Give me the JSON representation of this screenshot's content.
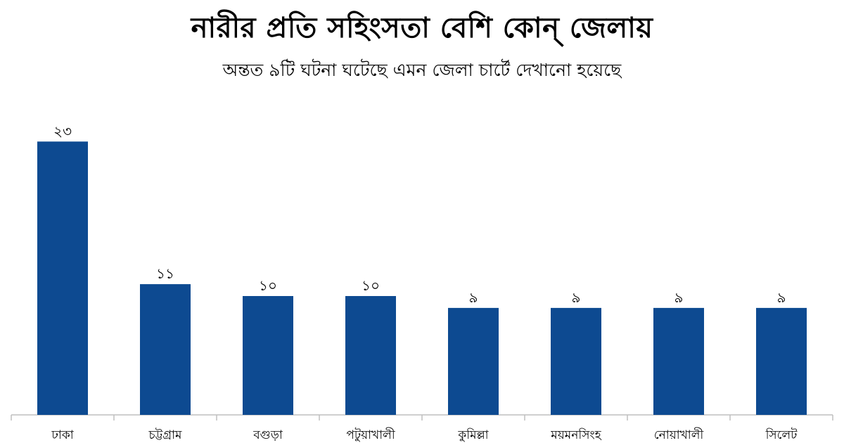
{
  "chart_data": {
    "type": "bar",
    "title": "নারীর প্রতি সহিংসতা বেশি কোন্ জেলায়",
    "subtitle": "অন্তত ৯টি ঘটনা ঘটেছে এমন জেলা চার্টে দেখানো হয়েছে",
    "categories": [
      "ঢাকা",
      "চট্টগ্রাম",
      "বগুড়া",
      "পটুয়াখালী",
      "কুমিল্লা",
      "ময়মনসিংহ",
      "নোয়াখালী",
      "সিলেট"
    ],
    "values": [
      23,
      11,
      10,
      10,
      9,
      9,
      9,
      9
    ],
    "value_labels": [
      "২৩",
      "১১",
      "১০",
      "১০",
      "৯",
      "৯",
      "৯",
      "৯"
    ],
    "ylim": [
      0,
      24
    ],
    "grid": false,
    "bar_color": "#0d4a91"
  }
}
